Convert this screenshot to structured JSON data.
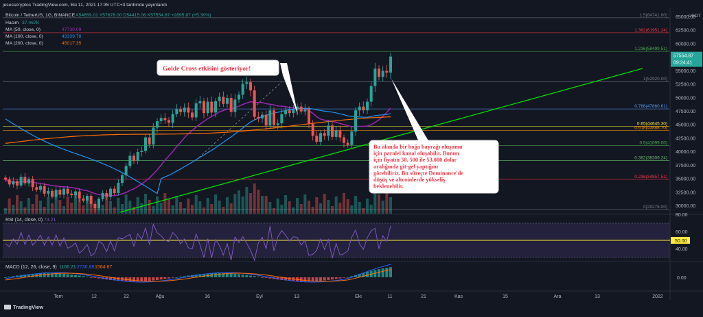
{
  "header": {
    "published": "jesusscryptos TradingView.com, Eki 11, 2021 17:35 UTC+3 tarihinde yayınlandı",
    "symbol": "Bitcoin / TetherUS, 1G, BINANCE",
    "ohlc": "A54659.01  Y57678.00  D54415.06  K57554.87  +2895.87 (+5.30%)",
    "volume_label": "Hacim",
    "volume_value": "37.467K",
    "ma50_label": "MA (50, close, 0)",
    "ma50_value": "47730.09",
    "ma100_label": "MA (100, close, 0)",
    "ma100_value": "43339.78",
    "ma200_label": "MA (200, close, 0)",
    "ma200_value": "45017.35"
  },
  "price_axis": {
    "currency": "USDT",
    "ticks": [
      "65000.00",
      "62500.00",
      "60000.00",
      "57500.00",
      "55000.00",
      "52500.00",
      "50000.00",
      "47500.00",
      "45000.00",
      "42500.00",
      "40000.00",
      "37500.00",
      "35000.00",
      "32500.00",
      "30000.00"
    ],
    "current_price": "57554.87",
    "countdown": "09:24:41"
  },
  "fib_levels": [
    {
      "label": "1.5(64741.00)",
      "color": "#787b86"
    },
    {
      "label": "1.382(61951.24)",
      "color": "#f23645"
    },
    {
      "label": "1.236(58499.51)",
      "color": "#4caf50"
    },
    {
      "label": "1(52920.00)",
      "color": "#787b86"
    },
    {
      "label": "0.786(47860.61)",
      "color": "#5b9cf6"
    },
    {
      "label": "0.65(44645.30)",
      "color": "#ffeb3b"
    },
    {
      "label": "0.618(43888.70)",
      "color": "#ff9800"
    },
    {
      "label": "0.5(41099.00)",
      "color": "#4caf50"
    },
    {
      "label": "0.382(38309.24)",
      "color": "#66bb6a"
    },
    {
      "label": "0.236(34857.51)",
      "color": "#f23645"
    },
    {
      "label": "0(29278.00)",
      "color": "#787b86"
    }
  ],
  "annotations": {
    "golden_cross": "Golde Cross etkisini gösteriyor!",
    "flag_note": "Bu alanda bir boğa bayrağı oluşumu için paralel kanal oluşabilir. Bunun için fiyatın 58. 500 ile 53.000 dolar aralığında git-gel yaptığını görebiliriz. Bu süreçte Dominance'de düşüş ve altcoinlerde yükseliş beklenebilir."
  },
  "rsi": {
    "label": "RSI (14, close, 0)",
    "value": "73.21",
    "ticks": [
      "80.00",
      "60.00",
      "40.00"
    ],
    "marker": "50.00"
  },
  "macd": {
    "label": "MACD (12, 26, close, 9)",
    "v1": "1166.21",
    "v2": "2730.88",
    "v3": "1564.67",
    "tick": "0.00"
  },
  "time_axis": [
    "Tem",
    "12",
    "22",
    "Ağu",
    "16",
    "Eyl",
    "13",
    "Eki",
    "11",
    "21",
    "Kas",
    "15",
    "Ara",
    "13",
    "2022"
  ],
  "footer": {
    "brand": "TradingView"
  },
  "colors": {
    "up": "#26a69a",
    "down": "#ef5350",
    "ma50": "#9c27b0",
    "ma100": "#2196f3",
    "ma200": "#ff6d00",
    "trend": "#00e000",
    "rsi": "#7e57c2"
  },
  "chart_data": {
    "type": "candlestick",
    "title": "Bitcoin / TetherUS, 1G, BINANCE",
    "ylim": [
      28500,
      66500
    ],
    "closes": [
      34800,
      33900,
      34500,
      33700,
      35300,
      34100,
      34900,
      33400,
      32900,
      33600,
      32200,
      32700,
      31600,
      32900,
      32000,
      33100,
      32200,
      31900,
      32600,
      31300,
      30900,
      31800,
      30300,
      29500,
      31200,
      32300,
      31600,
      33100,
      32300,
      34200,
      35600,
      37300,
      39200,
      38300,
      39900,
      40100,
      42600,
      41300,
      44400,
      45600,
      46200,
      45800,
      45300,
      46900,
      47800,
      47300,
      48100,
      47200,
      46300,
      48900,
      49300,
      47100,
      49200,
      47200,
      49300,
      50100,
      48800,
      49900,
      47300,
      49600,
      50500,
      52500,
      52800,
      51300,
      46400,
      46100,
      46800,
      44800,
      47600,
      44900,
      45200,
      46900,
      47600,
      47100,
      47700,
      48300,
      47400,
      47800,
      45100,
      42900,
      41800,
      43400,
      42900,
      44800,
      42700,
      43900,
      42600,
      41600,
      41200,
      43700,
      47600,
      48300,
      47600,
      49200,
      52100,
      55300,
      53800,
      54900,
      54600,
      57554
    ]
  }
}
